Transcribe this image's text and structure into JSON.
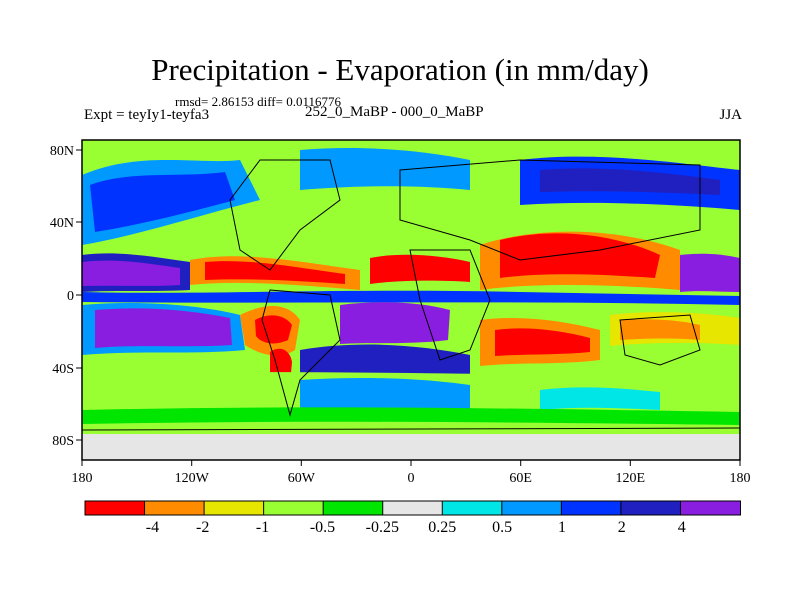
{
  "title": "Precipitation - Evaporation (in mm/day)",
  "stats_line": "rmsd= 2.86153 diff= 0.0116776",
  "left_label": "Expt = teyIy1-teyfa3",
  "center_label": "252_0_MaBP - 000_0_MaBP",
  "right_label": "JJA",
  "axes": {
    "x_ticks": [
      "180",
      "120W",
      "60W",
      "0",
      "60E",
      "120E",
      "180"
    ],
    "y_ticks": [
      "80N",
      "40N",
      "0",
      "40S",
      "80S"
    ]
  },
  "colorbar": {
    "labels": [
      "-4",
      "-2",
      "-1",
      "-0.5",
      "-0.25",
      "0.25",
      "0.5",
      "1",
      "2",
      "4"
    ],
    "colors": [
      "#ff0000",
      "#ff8c00",
      "#e6e600",
      "#99ff33",
      "#00e600",
      "#e6e6e6",
      "#00e6e6",
      "#0099ff",
      "#0033ff",
      "#2020c0",
      "#8a1ee0"
    ]
  }
}
